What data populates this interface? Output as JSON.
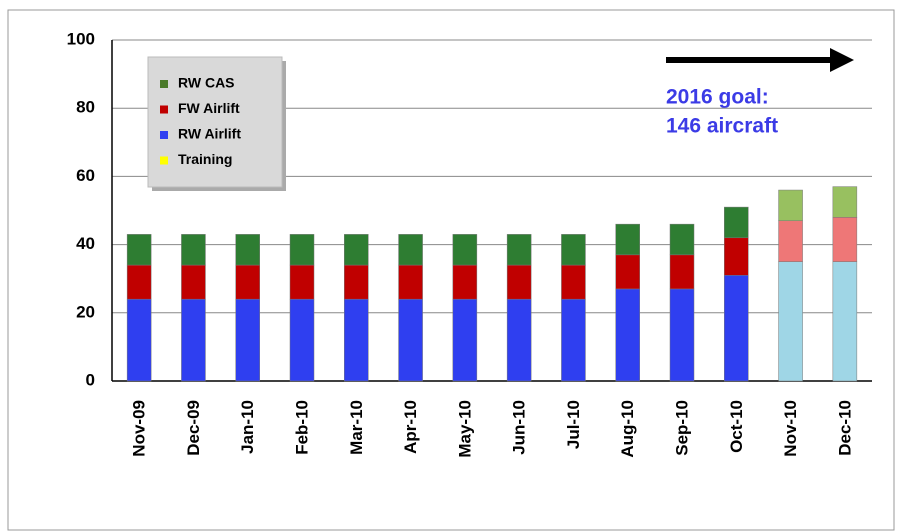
{
  "chart_data": {
    "type": "stacked_bar",
    "categories": [
      "Nov-09",
      "Dec-09",
      "Jan-10",
      "Feb-10",
      "Mar-10",
      "Apr-10",
      "May-10",
      "Jun-10",
      "Jul-10",
      "Aug-10",
      "Sep-10",
      "Oct-10",
      "Nov-10",
      "Dec-10"
    ],
    "series": [
      {
        "name": "Training",
        "color": "#ffff00",
        "values": [
          0,
          0,
          0,
          0,
          0,
          0,
          0,
          0,
          0,
          0,
          0,
          0,
          0,
          0
        ],
        "colors": [
          "#ffff00",
          "#ffff00",
          "#ffff00",
          "#ffff00",
          "#ffff00",
          "#ffff00",
          "#ffff00",
          "#ffff00",
          "#ffff00",
          "#ffff00",
          "#ffff00",
          "#ffff00",
          "#ffff99",
          "#ffff99"
        ]
      },
      {
        "name": "RW Airlift",
        "color": "#2f3ff0",
        "values": [
          24,
          24,
          24,
          24,
          24,
          24,
          24,
          24,
          24,
          27,
          27,
          31,
          35,
          35
        ],
        "colors": [
          "#2f3ff0",
          "#2f3ff0",
          "#2f3ff0",
          "#2f3ff0",
          "#2f3ff0",
          "#2f3ff0",
          "#2f3ff0",
          "#2f3ff0",
          "#2f3ff0",
          "#2f3ff0",
          "#2f3ff0",
          "#2f3ff0",
          "#9fd6e6",
          "#9fd6e6"
        ]
      },
      {
        "name": "FW Airlift",
        "color": "#c00000",
        "values": [
          10,
          10,
          10,
          10,
          10,
          10,
          10,
          10,
          10,
          10,
          10,
          11,
          12,
          13
        ],
        "colors": [
          "#c00000",
          "#c00000",
          "#c00000",
          "#c00000",
          "#c00000",
          "#c00000",
          "#c00000",
          "#c00000",
          "#c00000",
          "#c00000",
          "#c00000",
          "#c00000",
          "#ee7777",
          "#ee7777"
        ]
      },
      {
        "name": "RW CAS",
        "color": "#4a7a2a",
        "values": [
          9,
          9,
          9,
          9,
          9,
          9,
          9,
          9,
          9,
          9,
          9,
          9,
          9,
          9
        ],
        "colors": [
          "#2e7d32",
          "#2e7d32",
          "#2e7d32",
          "#2e7d32",
          "#2e7d32",
          "#2e7d32",
          "#2e7d32",
          "#2e7d32",
          "#2e7d32",
          "#2e7d32",
          "#2e7d32",
          "#2e7d32",
          "#98c060",
          "#98c060"
        ]
      }
    ],
    "ylim": [
      0,
      100
    ],
    "yticks": [
      0,
      20,
      40,
      60,
      80,
      100
    ],
    "grid": true,
    "annotation": [
      "2016 goal:",
      "146 aircraft"
    ]
  }
}
